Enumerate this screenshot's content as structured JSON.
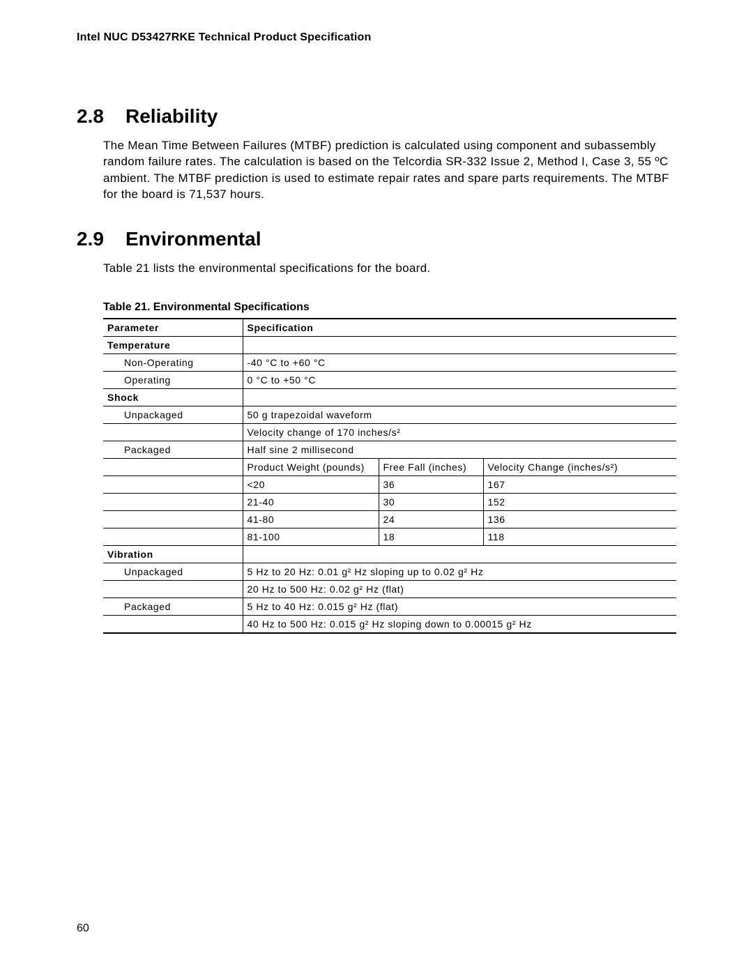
{
  "header": "Intel NUC D53427RKE Technical Product Specification",
  "sec1": {
    "num": "2.8",
    "title": "Reliability"
  },
  "p1": "The Mean Time Between Failures (MTBF) prediction is calculated using component and subassembly random failure rates.  The calculation is based on the Telcordia SR-332 Issue 2, Method I, Case 3, 55 ºC ambient.  The MTBF prediction is used to estimate repair rates and spare parts requirements.  The MTBF for the board is 71,537 hours.",
  "sec2": {
    "num": "2.9",
    "title": "Environmental"
  },
  "p2": "Table 21 lists the environmental specifications for the board.",
  "caption": "Table 21.  Environmental Specifications",
  "th": {
    "param": "Parameter",
    "spec": "Specification"
  },
  "rows": {
    "temp": "Temperature",
    "nonop": "Non-Operating",
    "nonop_v": "-40 °C to +60 °C",
    "op": "Operating",
    "op_v": "0 °C to +50 °C",
    "shock": "Shock",
    "unp": "Unpackaged",
    "unp_v1": "50 g trapezoidal waveform",
    "unp_v2": "Velocity change of 170 inches/s²",
    "pkg": "Packaged",
    "pkg_v": "Half sine 2 millisecond",
    "sh_h1": "Product Weight (pounds)",
    "sh_h2": "Free Fall (inches)",
    "sh_h3": "Velocity Change (inches/s²)",
    "r1a": "<20",
    "r1b": "36",
    "r1c": "167",
    "r2a": "21-40",
    "r2b": "30",
    "r2c": "152",
    "r3a": "41-80",
    "r3b": "24",
    "r3c": "136",
    "r4a": "81-100",
    "r4b": "18",
    "r4c": "118",
    "vib": "Vibration",
    "vunp": "Unpackaged",
    "vunp_v1": "5 Hz to 20 Hz:  0.01 g² Hz sloping up to 0.02 g² Hz",
    "vunp_v2": "20 Hz to 500 Hz:  0.02 g² Hz (flat)",
    "vpkg": "Packaged",
    "vpkg_v1": "5 Hz to 40 Hz:  0.015 g² Hz (flat)",
    "vpkg_v2": "40 Hz to 500 Hz:  0.015 g² Hz sloping down to 0.00015 g² Hz"
  },
  "pagenum": "60"
}
